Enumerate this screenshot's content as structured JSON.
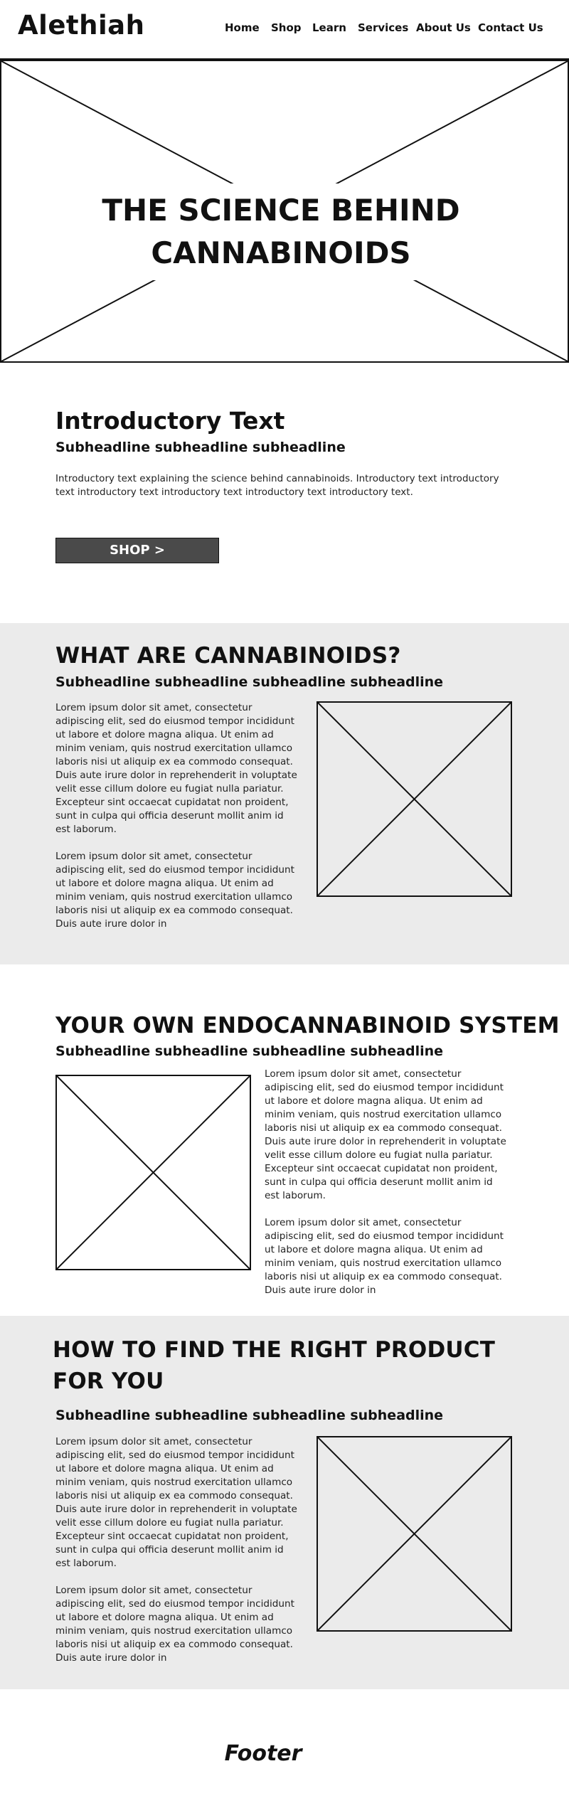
{
  "header": {
    "logo": "Alethiah",
    "nav": [
      "Home",
      "Shop",
      "Learn",
      "Services",
      "About Us",
      "Contact Us"
    ]
  },
  "hero": {
    "title": "THE SCIENCE BEHIND CANNABINOIDS"
  },
  "intro": {
    "heading": "Introductory Text",
    "subheading": "Subheadline subheadline subheadline",
    "text": "Introductory text explaining the science behind cannabinoids. Introductory text introductory text introductory text introductory text introductory text introductory text.",
    "button": "SHOP >"
  },
  "sections": [
    {
      "title": "WHAT ARE CANNABINOIDS?",
      "subheading": "Subheadline subheadline subheadline subheadline",
      "paragraph1": "Lorem ipsum dolor sit amet, consectetur adipiscing elit, sed do eiusmod tempor incididunt ut labore et dolore magna aliqua. Ut enim ad minim veniam, quis nostrud exercitation ullamco laboris nisi ut aliquip ex ea commodo consequat. Duis aute irure dolor in reprehenderit in voluptate velit esse cillum dolore eu fugiat nulla pariatur. Excepteur sint occaecat cupidatat non proident, sunt in culpa qui officia deserunt mollit anim id est laborum.",
      "paragraph2": "Lorem ipsum dolor sit amet, consectetur adipiscing elit, sed do eiusmod tempor incididunt ut labore et dolore magna aliqua. Ut enim ad minim veniam, quis nostrud exercitation ullamco laboris nisi ut aliquip ex ea commodo consequat. Duis aute irure dolor in"
    },
    {
      "title": "YOUR OWN ENDOCANNABINOID SYSTEM",
      "subheading": "Subheadline subheadline subheadline subheadline",
      "paragraph1": "Lorem ipsum dolor sit amet, consectetur adipiscing elit, sed do eiusmod tempor incididunt ut labore et dolore magna aliqua. Ut enim ad minim veniam, quis nostrud exercitation ullamco laboris nisi ut aliquip ex ea commodo consequat. Duis aute irure dolor in reprehenderit in voluptate velit esse cillum dolore eu fugiat nulla pariatur. Excepteur sint occaecat cupidatat non proident, sunt in culpa qui officia deserunt mollit anim id est laborum.",
      "paragraph2": "Lorem ipsum dolor sit amet, consectetur adipiscing elit, sed do eiusmod tempor incididunt ut labore et dolore magna aliqua. Ut enim ad minim veniam, quis nostrud exercitation ullamco laboris nisi ut aliquip ex ea commodo consequat. Duis aute irure dolor in"
    },
    {
      "title": "HOW TO FIND THE RIGHT PRODUCT FOR YOU",
      "subheading": "Subheadline subheadline subheadline subheadline",
      "paragraph1": "Lorem ipsum dolor sit amet, consectetur adipiscing elit, sed do eiusmod tempor incididunt ut labore et dolore magna aliqua. Ut enim ad minim veniam, quis nostrud exercitation ullamco laboris nisi ut aliquip ex ea commodo consequat. Duis aute irure dolor in reprehenderit in voluptate velit esse cillum dolore eu fugiat nulla pariatur. Excepteur sint occaecat cupidatat non proident, sunt in culpa qui officia deserunt mollit anim id est laborum.",
      "paragraph2": "Lorem ipsum dolor sit amet, consectetur adipiscing elit, sed do eiusmod tempor incididunt ut labore et dolore magna aliqua. Ut enim ad minim veniam, quis nostrud exercitation ullamco laboris nisi ut aliquip ex ea commodo consequat. Duis aute irure dolor in"
    }
  ],
  "footer": {
    "label": "Footer"
  }
}
